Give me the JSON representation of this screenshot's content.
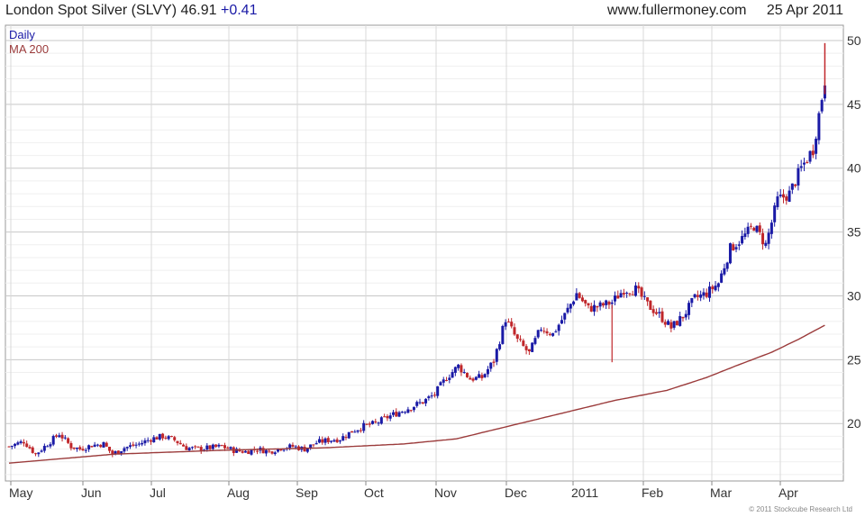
{
  "header": {
    "instrument": "London Spot Silver (SLVY)",
    "last": "46.91",
    "change": "+0.41",
    "site": "www.fullermoney.com",
    "date": "25 Apr 2011"
  },
  "footer": {
    "credit": "© 2011 Stockcube Research Ltd"
  },
  "colors": {
    "up": "#1a1aa6",
    "down": "#c0262a",
    "ma": "#9b3b3b",
    "grid": "#d8d8d8",
    "axis": "#999999"
  },
  "chart_data": {
    "type": "line",
    "subtype": "candlestick",
    "grid": true,
    "legend_position": "top-left",
    "legend": [
      {
        "name": "Daily",
        "color": "#1a1aa6"
      },
      {
        "name": "MA 200",
        "color": "#9b3b3b"
      }
    ],
    "x_tick_labels": [
      "May",
      "Jun",
      "Jul",
      "Aug",
      "Sep",
      "Oct",
      "Nov",
      "Dec",
      "2011",
      "Feb",
      "Mar",
      "Apr"
    ],
    "y_ticks": [
      20,
      25,
      30,
      35,
      40,
      45,
      50
    ],
    "ylim": [
      15.5,
      51.2
    ],
    "approx_trading_days": 260,
    "daily_close_weekly_points": [
      [
        0,
        18.2
      ],
      [
        5,
        18.6
      ],
      [
        9,
        17.6
      ],
      [
        13,
        18.4
      ],
      [
        17,
        19.2
      ],
      [
        21,
        18.2
      ],
      [
        24,
        18.0
      ],
      [
        28,
        18.3
      ],
      [
        32,
        18.4
      ],
      [
        35,
        17.6
      ],
      [
        39,
        18.1
      ],
      [
        44,
        18.4
      ],
      [
        48,
        18.8
      ],
      [
        52,
        19.0
      ],
      [
        56,
        18.7
      ],
      [
        60,
        18.1
      ],
      [
        64,
        18.0
      ],
      [
        68,
        18.1
      ],
      [
        72,
        18.2
      ],
      [
        76,
        17.9
      ],
      [
        80,
        17.8
      ],
      [
        84,
        18.0
      ],
      [
        88,
        17.8
      ],
      [
        92,
        18.1
      ],
      [
        96,
        18.2
      ],
      [
        100,
        18.0
      ],
      [
        104,
        18.5
      ],
      [
        108,
        18.7
      ],
      [
        112,
        18.8
      ],
      [
        116,
        19.4
      ],
      [
        120,
        19.8
      ],
      [
        124,
        20.0
      ],
      [
        128,
        20.5
      ],
      [
        132,
        20.9
      ],
      [
        136,
        21.3
      ],
      [
        140,
        21.7
      ],
      [
        144,
        22.3
      ],
      [
        148,
        23.6
      ],
      [
        152,
        24.5
      ],
      [
        156,
        23.5
      ],
      [
        160,
        23.6
      ],
      [
        164,
        24.9
      ],
      [
        168,
        28.2
      ],
      [
        172,
        26.5
      ],
      [
        176,
        25.5
      ],
      [
        180,
        27.5
      ],
      [
        184,
        27.0
      ],
      [
        188,
        28.5
      ],
      [
        192,
        30.2
      ],
      [
        196,
        29.0
      ],
      [
        200,
        29.2
      ],
      [
        204,
        29.5
      ],
      [
        208,
        30.5
      ],
      [
        212,
        30.5
      ],
      [
        216,
        29.3
      ],
      [
        220,
        28.5
      ],
      [
        224,
        27.5
      ],
      [
        228,
        28.4
      ],
      [
        232,
        29.8
      ],
      [
        236,
        30.2
      ],
      [
        240,
        31.0
      ],
      [
        244,
        33.7
      ],
      [
        248,
        34.5
      ],
      [
        252,
        35.5
      ],
      [
        256,
        34.0
      ],
      [
        260,
        37.5
      ],
      [
        264,
        38.0
      ],
      [
        268,
        40.0
      ],
      [
        272,
        41.5
      ],
      [
        276,
        46.91
      ]
    ],
    "ma200_points": [
      [
        0,
        16.9
      ],
      [
        40,
        17.6
      ],
      [
        80,
        17.9
      ],
      [
        120,
        18.1
      ],
      [
        150,
        18.4
      ],
      [
        170,
        18.8
      ],
      [
        190,
        19.8
      ],
      [
        210,
        20.8
      ],
      [
        230,
        21.8
      ],
      [
        250,
        22.6
      ],
      [
        265,
        23.6
      ],
      [
        276,
        24.5
      ],
      [
        290,
        25.6
      ],
      [
        300,
        26.6
      ],
      [
        310,
        27.7
      ]
    ]
  }
}
